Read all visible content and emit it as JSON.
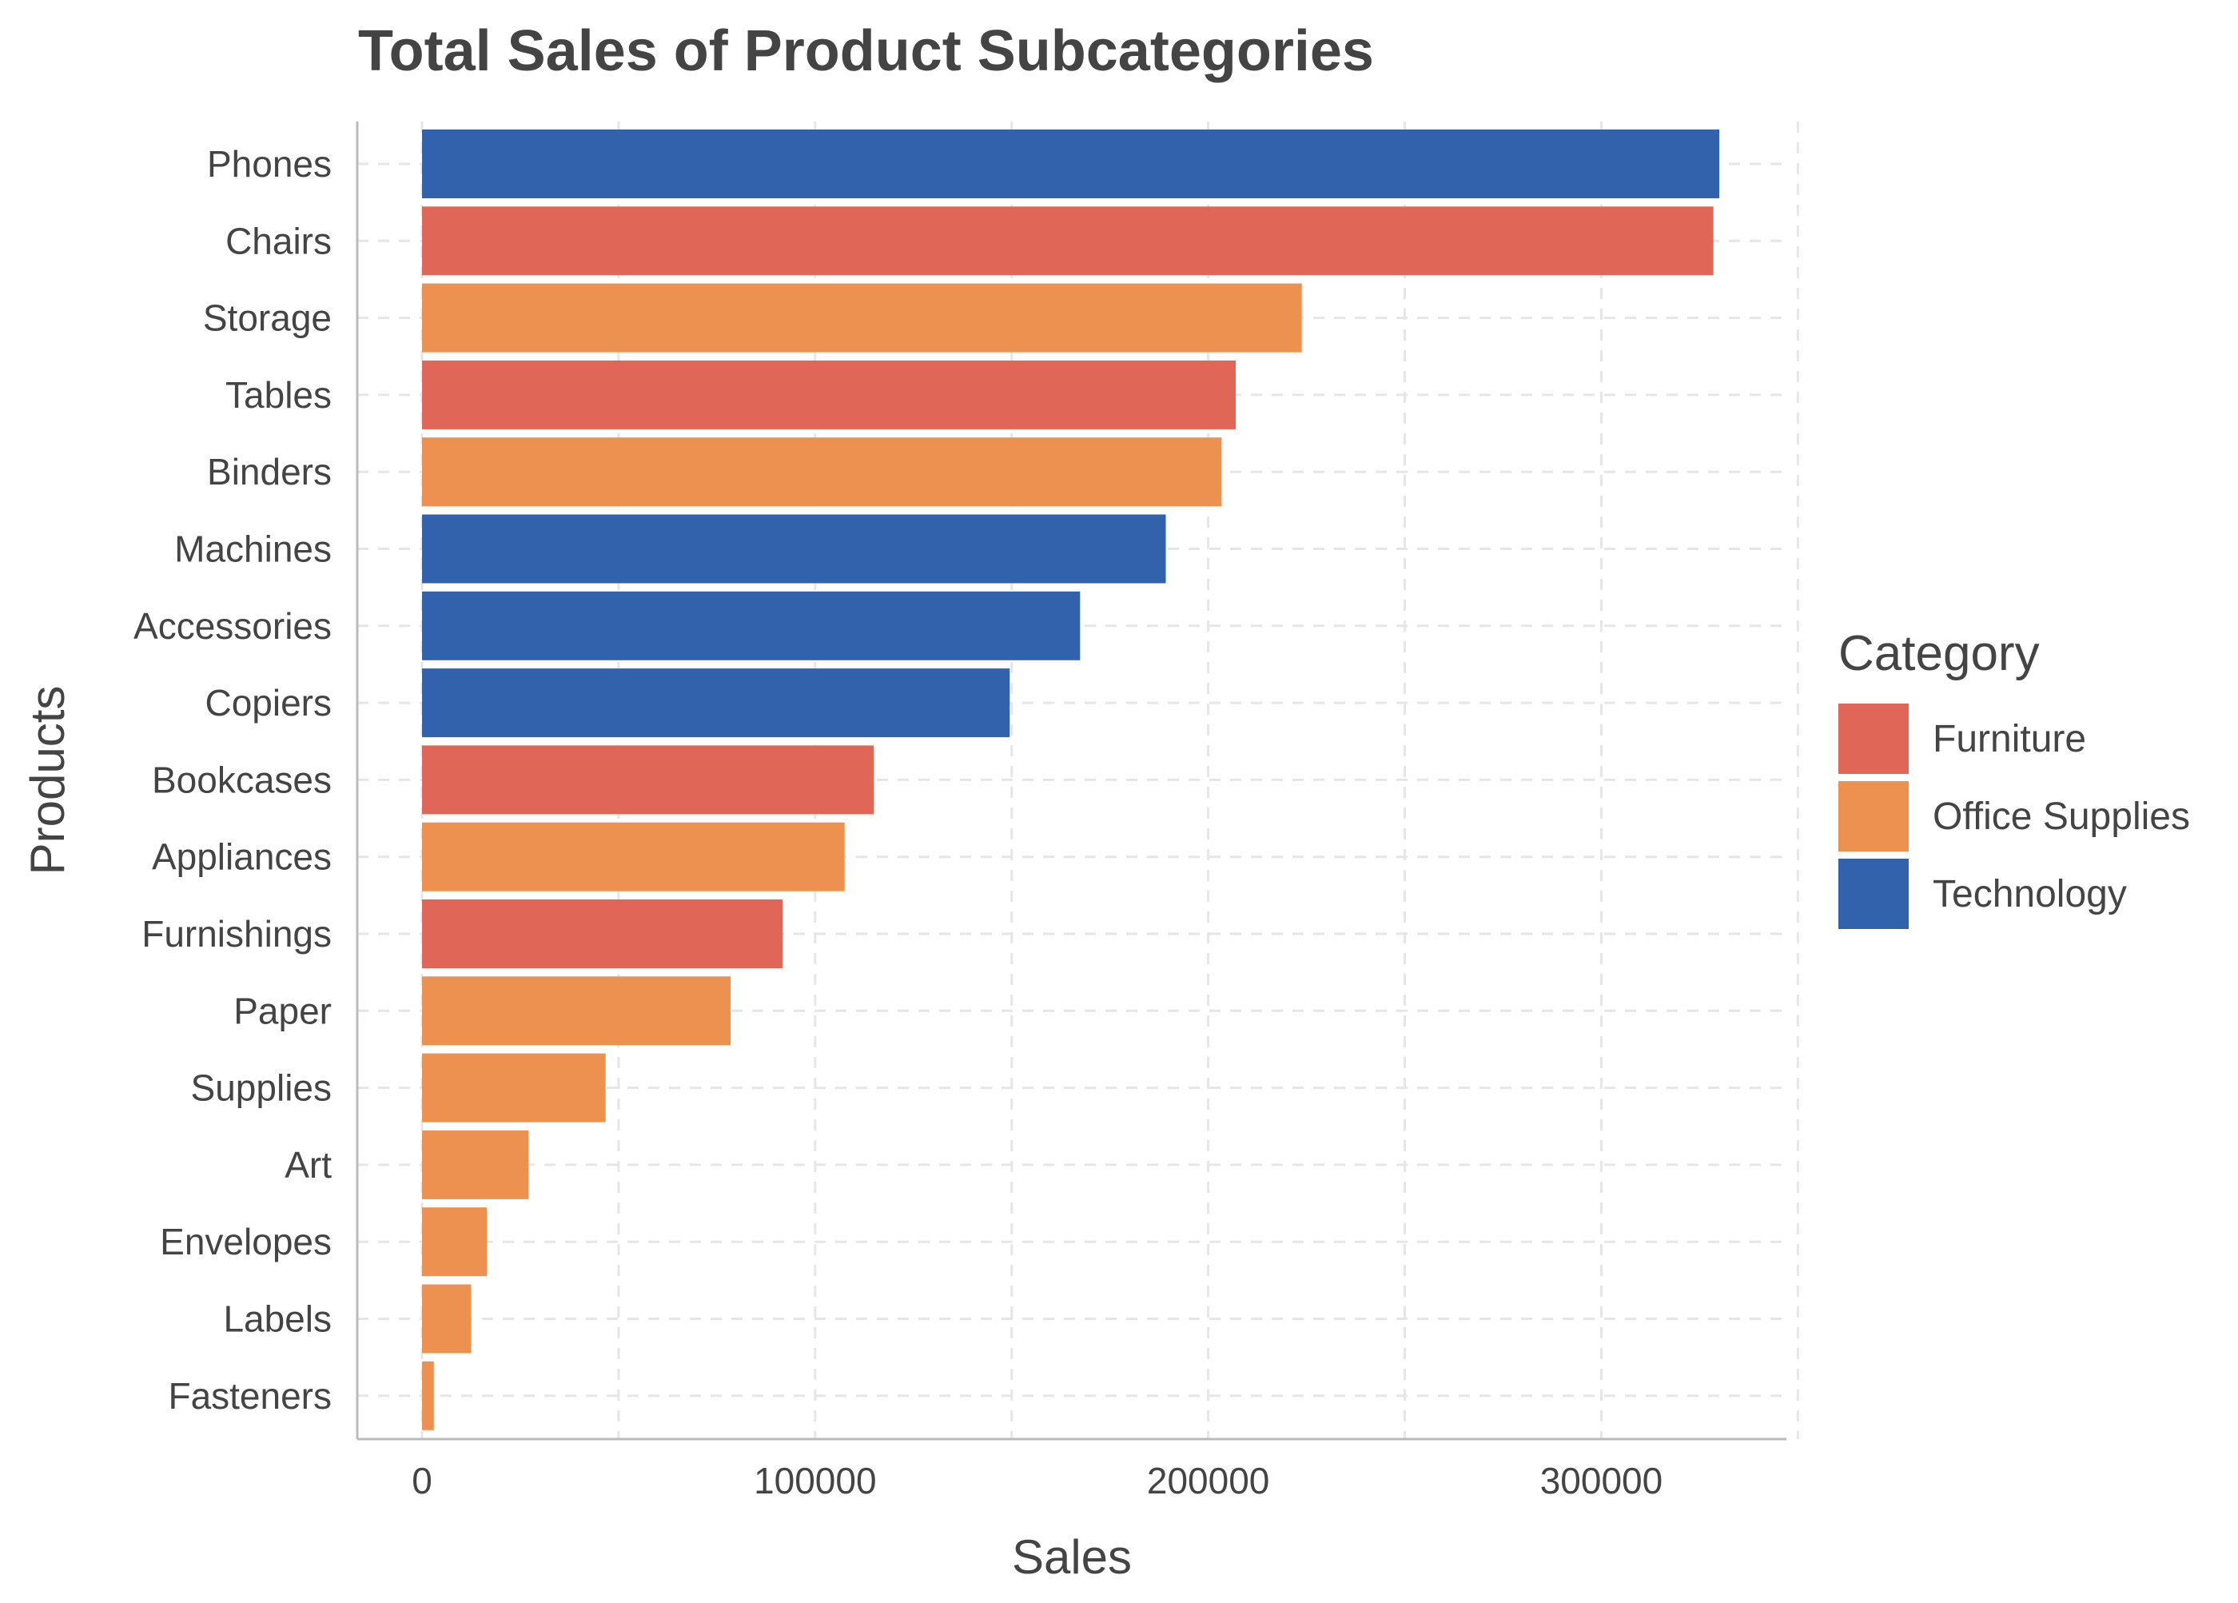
{
  "chart_data": {
    "type": "bar",
    "orientation": "horizontal",
    "title": "Total Sales of Product Subcategories",
    "xlabel": "Sales",
    "ylabel": "Products",
    "xlim": [
      0,
      345000
    ],
    "xticks": [
      0,
      100000,
      200000,
      300000
    ],
    "xtick_labels": [
      "0",
      "100000",
      "200000",
      "300000"
    ],
    "grid": true,
    "legend": {
      "title": "Category",
      "placement": "right",
      "entries": [
        {
          "name": "Furniture",
          "color": "#E06657"
        },
        {
          "name": "Office Supplies",
          "color": "#EC9150"
        },
        {
          "name": "Technology",
          "color": "#3262AB"
        }
      ]
    },
    "bars": [
      {
        "label": "Phones",
        "value": 330000,
        "category": "Technology"
      },
      {
        "label": "Chairs",
        "value": 328500,
        "category": "Furniture"
      },
      {
        "label": "Storage",
        "value": 223800,
        "category": "Office Supplies"
      },
      {
        "label": "Tables",
        "value": 207000,
        "category": "Furniture"
      },
      {
        "label": "Binders",
        "value": 203400,
        "category": "Office Supplies"
      },
      {
        "label": "Machines",
        "value": 189200,
        "category": "Technology"
      },
      {
        "label": "Accessories",
        "value": 167400,
        "category": "Technology"
      },
      {
        "label": "Copiers",
        "value": 149500,
        "category": "Technology"
      },
      {
        "label": "Bookcases",
        "value": 114900,
        "category": "Furniture"
      },
      {
        "label": "Appliances",
        "value": 107500,
        "category": "Office Supplies"
      },
      {
        "label": "Furnishings",
        "value": 91700,
        "category": "Furniture"
      },
      {
        "label": "Paper",
        "value": 78500,
        "category": "Office Supplies"
      },
      {
        "label": "Supplies",
        "value": 46700,
        "category": "Office Supplies"
      },
      {
        "label": "Art",
        "value": 27100,
        "category": "Office Supplies"
      },
      {
        "label": "Envelopes",
        "value": 16500,
        "category": "Office Supplies"
      },
      {
        "label": "Labels",
        "value": 12500,
        "category": "Office Supplies"
      },
      {
        "label": "Fasteners",
        "value": 3000,
        "category": "Office Supplies"
      }
    ]
  }
}
